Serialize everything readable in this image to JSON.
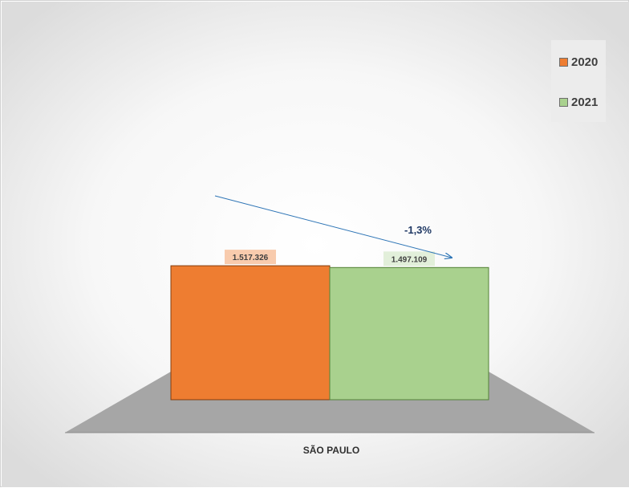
{
  "chart_data": {
    "type": "bar",
    "categories": [
      "SÃO PAULO"
    ],
    "series": [
      {
        "name": "2020",
        "values": [
          1517326
        ],
        "value_label": "1.517.326",
        "color": "#ee7d31"
      },
      {
        "name": "2021",
        "values": [
          1497109
        ],
        "value_label": "1.497.109",
        "color": "#a9d18e"
      }
    ],
    "annotation": {
      "text": "-1,3%",
      "color": "#1f3864"
    },
    "ylim": [
      0,
      3700000
    ],
    "legend_position": "top-right",
    "grid": false,
    "floor_color": "#a6a6a6"
  }
}
